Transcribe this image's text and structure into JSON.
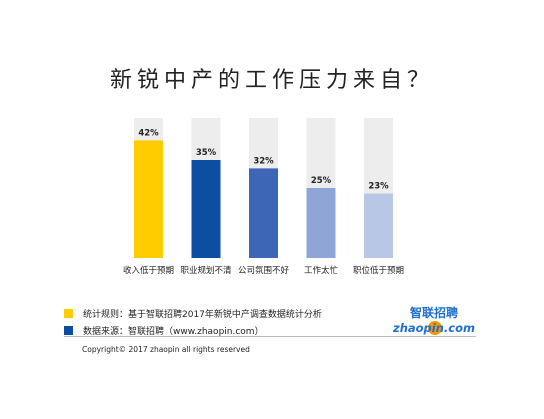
{
  "title": "新锐中产的工作压力来自？",
  "chart_data": {
    "type": "bar",
    "title": "新锐中产的工作压力来自？",
    "categories": [
      "收入低于预期",
      "职业规划不清",
      "公司氛围不好",
      "工作太忙",
      "职位低于预期"
    ],
    "values": [
      42,
      35,
      32,
      25,
      23
    ],
    "value_labels": [
      "42%",
      "35%",
      "32%",
      "25%",
      "23%"
    ],
    "ylim": [
      0,
      50
    ],
    "bar_colors": [
      "#FFCC00",
      "#0B4EA2",
      "#3D67B6",
      "#8FA5D8",
      "#B9C7E6"
    ],
    "track_color": "#EDEDED",
    "grid": false,
    "legend": "none"
  },
  "legend": [
    {
      "label": "统计规则：基于智联招聘2017年新锐中产调查数据统计分析",
      "color": "#FFCC00"
    },
    {
      "label": "数据来源：智联招聘（www.zhaopin.com）",
      "color": "#0B4EA2"
    }
  ],
  "copyright": "Copyright© 2017 zhaopin all rights reserved",
  "logo": {
    "text_cn": "智联招聘",
    "text_en": "zhaopin.com",
    "colors": {
      "brand_blue": "#1E6FD0",
      "brand_orange": "#F39800"
    }
  }
}
